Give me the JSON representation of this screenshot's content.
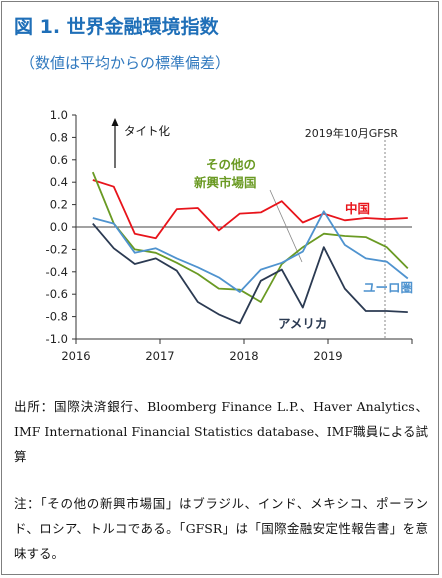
{
  "figure": {
    "title": "図 1. 世界金融環境指数",
    "subtitle": "（数値は平均からの標準偏差）"
  },
  "chart_data": {
    "type": "line",
    "title": "",
    "xlabel": "",
    "ylabel": "",
    "ylim": [
      -1.0,
      1.0
    ],
    "yticks": [
      "1.0",
      "0.8",
      "0.6",
      "0.4",
      "0.2",
      "0.0",
      "-0.2",
      "-0.4",
      "-0.6",
      "-0.8",
      "-1.0"
    ],
    "xlim": [
      2016.0,
      2020.0
    ],
    "xticks": [
      "2016",
      "2017",
      "2018",
      "2019"
    ],
    "grid": false,
    "legend": "inline labels",
    "annotations": {
      "direction_label": "タイト化",
      "edition_label": "2019年10月GFSR"
    },
    "series": [
      {
        "name": "中国",
        "color": "#e8141b",
        "x": [
          2016.2,
          2016.45,
          2016.7,
          2016.95,
          2017.2,
          2017.45,
          2017.7,
          2017.95,
          2018.2,
          2018.45,
          2018.7,
          2018.95,
          2019.2,
          2019.45,
          2019.7,
          2019.95
        ],
        "values": [
          0.42,
          0.36,
          -0.06,
          -0.1,
          0.16,
          0.17,
          -0.03,
          0.12,
          0.13,
          0.23,
          0.04,
          0.12,
          0.06,
          0.08,
          0.07,
          0.08
        ]
      },
      {
        "name": "その他の新興市場国",
        "color": "#6a9a23",
        "x": [
          2016.2,
          2016.45,
          2016.7,
          2016.95,
          2017.2,
          2017.45,
          2017.7,
          2017.95,
          2018.2,
          2018.45,
          2018.7,
          2018.95,
          2019.2,
          2019.45,
          2019.7,
          2019.95
        ],
        "values": [
          0.49,
          0.03,
          -0.2,
          -0.23,
          -0.32,
          -0.42,
          -0.55,
          -0.56,
          -0.67,
          -0.33,
          -0.18,
          -0.06,
          -0.08,
          -0.09,
          -0.18,
          -0.37
        ]
      },
      {
        "name": "ユーロ圏",
        "color": "#4f93cf",
        "x": [
          2016.2,
          2016.45,
          2016.7,
          2016.95,
          2017.2,
          2017.45,
          2017.7,
          2017.95,
          2018.2,
          2018.45,
          2018.7,
          2018.95,
          2019.2,
          2019.45,
          2019.7,
          2019.95
        ],
        "values": [
          0.08,
          0.03,
          -0.23,
          -0.19,
          -0.28,
          -0.36,
          -0.45,
          -0.58,
          -0.38,
          -0.32,
          -0.22,
          0.14,
          -0.16,
          -0.28,
          -0.31,
          -0.46
        ]
      },
      {
        "name": "アメリカ",
        "color": "#2b3a52",
        "x": [
          2016.2,
          2016.45,
          2016.7,
          2016.95,
          2017.2,
          2017.45,
          2017.7,
          2017.95,
          2018.2,
          2018.45,
          2018.7,
          2018.95,
          2019.2,
          2019.45,
          2019.7,
          2019.95
        ],
        "values": [
          0.03,
          -0.19,
          -0.33,
          -0.28,
          -0.39,
          -0.67,
          -0.78,
          -0.86,
          -0.48,
          -0.38,
          -0.72,
          -0.18,
          -0.55,
          -0.75,
          -0.75,
          -0.76
        ]
      }
    ],
    "labels": {
      "other_em_line1": "その他の",
      "other_em_line2": "新興市場国"
    }
  },
  "notes": {
    "source": "出所：国際決済銀行、Bloomberg Finance L.P.、Haver Analytics、IMF International Financial Statistics database、IMF職員による試算",
    "remark": "注：「その他の新興市場国」はブラジル、インド、メキシコ、ポーランド、ロシア、トルコである。「GFSR」は「国際金融安定性報告書」を意味する。"
  }
}
